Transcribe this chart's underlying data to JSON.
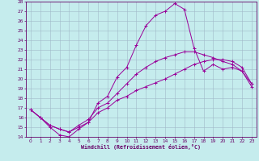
{
  "xlabel": "Windchill (Refroidissement éolien,°C)",
  "background_color": "#c5eced",
  "grid_color": "#a0b8c8",
  "line_color": "#990099",
  "xlim": [
    -0.5,
    23.5
  ],
  "ylim": [
    14,
    28
  ],
  "xticks": [
    0,
    1,
    2,
    3,
    4,
    5,
    6,
    7,
    8,
    9,
    10,
    11,
    12,
    13,
    14,
    15,
    16,
    17,
    18,
    19,
    20,
    21,
    22,
    23
  ],
  "yticks": [
    14,
    15,
    16,
    17,
    18,
    19,
    20,
    21,
    22,
    23,
    24,
    25,
    26,
    27,
    28
  ],
  "line1_x": [
    0,
    1,
    2,
    3,
    4,
    5,
    6,
    7,
    8,
    9,
    10,
    11,
    12,
    13,
    14,
    15,
    16,
    17,
    18,
    19,
    20,
    21,
    22,
    23
  ],
  "line1_y": [
    16.8,
    16.0,
    15.0,
    14.2,
    14.0,
    14.8,
    15.5,
    17.5,
    18.2,
    20.2,
    21.2,
    23.5,
    25.5,
    26.6,
    27.0,
    27.8,
    27.2,
    23.2,
    20.8,
    21.5,
    21.0,
    21.2,
    20.8,
    19.2
  ],
  "line2_x": [
    0,
    1,
    2,
    3,
    4,
    5,
    6,
    7,
    8,
    9,
    10,
    11,
    12,
    13,
    14,
    15,
    16,
    17,
    18,
    19,
    20,
    21,
    22,
    23
  ],
  "line2_y": [
    16.8,
    16.0,
    15.2,
    14.8,
    14.5,
    15.2,
    15.8,
    17.0,
    17.5,
    18.5,
    19.5,
    20.5,
    21.2,
    21.8,
    22.2,
    22.5,
    22.8,
    22.8,
    22.5,
    22.2,
    21.8,
    21.5,
    20.8,
    19.5
  ],
  "line3_x": [
    0,
    1,
    2,
    3,
    4,
    5,
    6,
    7,
    8,
    9,
    10,
    11,
    12,
    13,
    14,
    15,
    16,
    17,
    18,
    19,
    20,
    21,
    22,
    23
  ],
  "line3_y": [
    16.8,
    16.0,
    15.2,
    14.8,
    14.5,
    15.0,
    15.5,
    16.5,
    17.0,
    17.8,
    18.2,
    18.8,
    19.2,
    19.6,
    20.0,
    20.5,
    21.0,
    21.5,
    21.8,
    22.0,
    22.0,
    21.8,
    21.2,
    19.5
  ]
}
